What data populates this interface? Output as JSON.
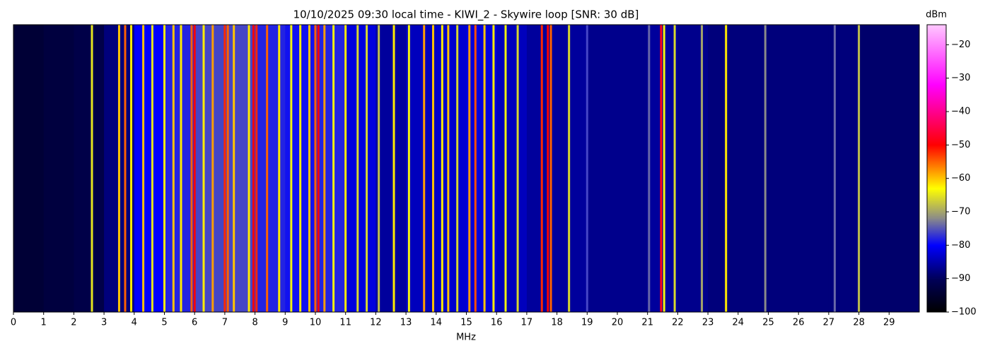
{
  "chart_data": {
    "type": "waterfall",
    "title": "10/10/2025 09:30 local time - KIWI_2 - Skywire loop [SNR: 30 dB]",
    "x_label": "MHz",
    "colorbar_label": "dBm",
    "xlim": [
      0,
      30
    ],
    "xticks": [
      0,
      1,
      2,
      3,
      4,
      5,
      6,
      7,
      8,
      9,
      10,
      11,
      12,
      13,
      14,
      15,
      16,
      17,
      18,
      19,
      20,
      21,
      22,
      23,
      24,
      25,
      26,
      27,
      28,
      29
    ],
    "clim": [
      -100,
      -14
    ],
    "cticks": [
      {
        "value": -100,
        "label": "−100"
      },
      {
        "value": -90,
        "label": "−90"
      },
      {
        "value": -80,
        "label": "−80"
      },
      {
        "value": -70,
        "label": "−70"
      },
      {
        "value": -60,
        "label": "−60"
      },
      {
        "value": -50,
        "label": "−50"
      },
      {
        "value": -40,
        "label": "−40"
      },
      {
        "value": -30,
        "label": "−30"
      },
      {
        "value": -20,
        "label": "−20"
      }
    ],
    "colormap": [
      {
        "value": -100,
        "color": "#000000"
      },
      {
        "value": -90,
        "color": "#00005a"
      },
      {
        "value": -80,
        "color": "#0000ff"
      },
      {
        "value": -72,
        "color": "#8a8a8a"
      },
      {
        "value": -63,
        "color": "#ffff00"
      },
      {
        "value": -50,
        "color": "#ff0000"
      },
      {
        "value": -32,
        "color": "#ff00ff"
      },
      {
        "value": -14,
        "color": "#ffc8ff"
      }
    ],
    "noise": {
      "bins": [
        0,
        1,
        2,
        3,
        4,
        5,
        6,
        7,
        8,
        9,
        10,
        11,
        12,
        13,
        14,
        15,
        16,
        17,
        18,
        19,
        20,
        21,
        22,
        23,
        24,
        25,
        26,
        27,
        28,
        29,
        30
      ],
      "values": [
        -94,
        -93,
        -92,
        -88,
        -80,
        -78,
        -76,
        -76,
        -78,
        -79,
        -78,
        -82,
        -86,
        -84,
        -83,
        -82,
        -84,
        -86,
        -86,
        -87,
        -87,
        -86,
        -87,
        -88,
        -88,
        -88,
        -88,
        -88,
        -89,
        -89
      ]
    },
    "signals": {
      "x": [
        2.6,
        3.5,
        3.7,
        3.9,
        4.3,
        4.6,
        5.0,
        5.3,
        5.55,
        5.9,
        6.0,
        6.3,
        6.6,
        7.0,
        7.1,
        7.3,
        7.8,
        7.95,
        8.05,
        8.4,
        8.8,
        9.2,
        9.5,
        9.8,
        10.0,
        10.1,
        10.3,
        10.6,
        11.0,
        11.4,
        11.7,
        12.1,
        12.6,
        13.1,
        13.6,
        13.9,
        14.2,
        14.4,
        14.7,
        15.1,
        15.3,
        15.6,
        15.9,
        16.3,
        16.7,
        17.5,
        17.7,
        17.8,
        18.4,
        19.0,
        21.05,
        21.45,
        21.55,
        21.9,
        22.8,
        23.6,
        24.9,
        27.2,
        28.0
      ],
      "values": [
        -65,
        -60,
        -55,
        -62,
        -60,
        -65,
        -62,
        -60,
        -62,
        -55,
        -50,
        -62,
        -58,
        -52,
        -55,
        -60,
        -62,
        -50,
        -52,
        -55,
        -62,
        -64,
        -62,
        -60,
        -55,
        -50,
        -58,
        -64,
        -62,
        -66,
        -66,
        -68,
        -62,
        -64,
        -58,
        -60,
        -62,
        -60,
        -66,
        -58,
        -54,
        -60,
        -62,
        -64,
        -66,
        -52,
        -50,
        -55,
        -66,
        -76,
        -74,
        -48,
        -64,
        -66,
        -70,
        -62,
        -72,
        -74,
        -68
      ]
    }
  }
}
